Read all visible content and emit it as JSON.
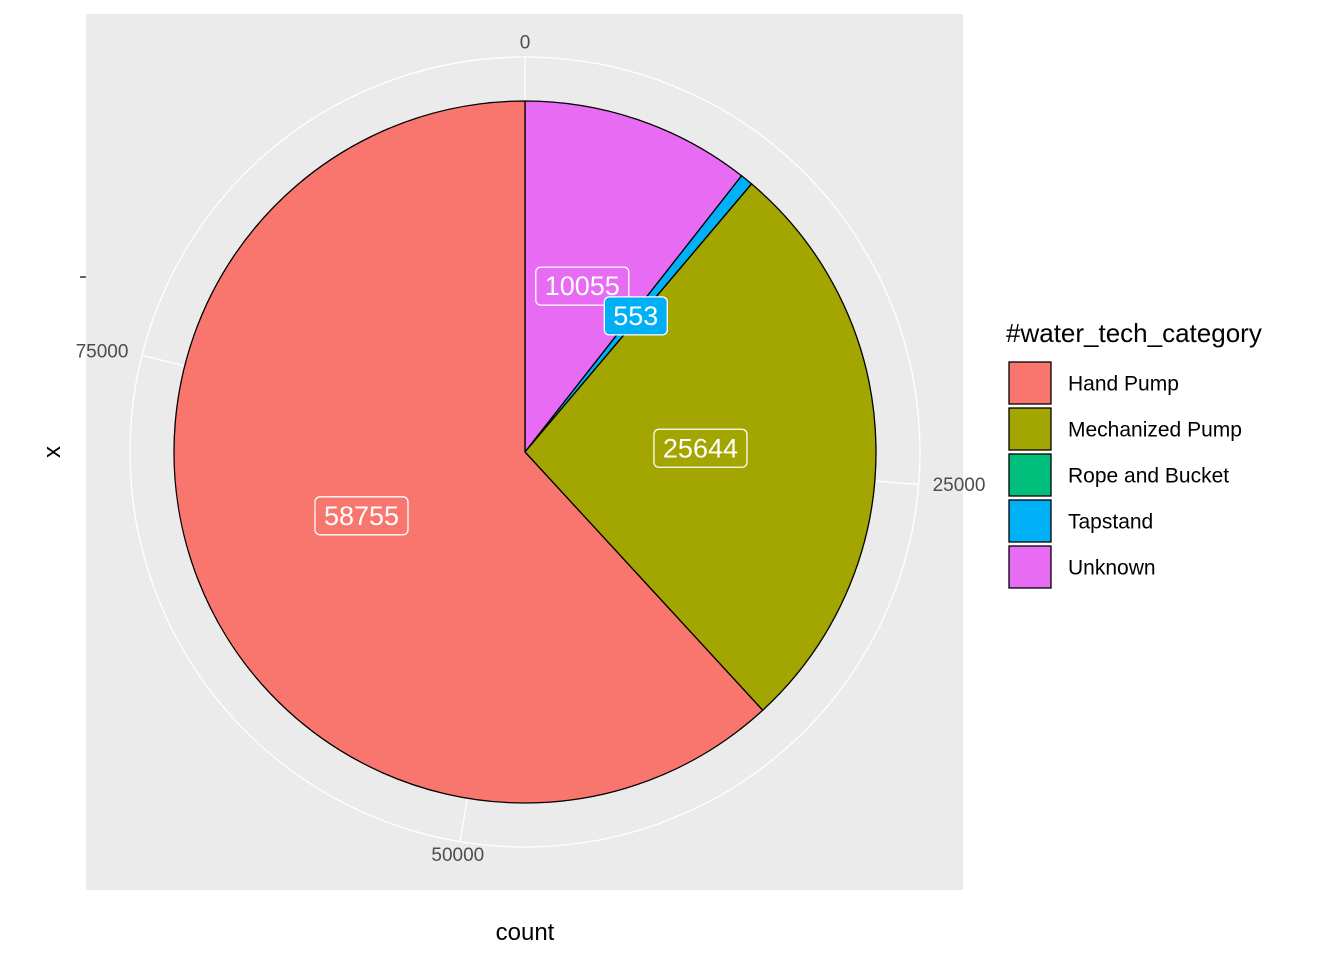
{
  "chart_data": {
    "type": "pie",
    "title": "",
    "xlabel": "count",
    "ylabel": "x",
    "radial_ticks": [
      0,
      25000,
      50000,
      75000
    ],
    "radial_max": 95009,
    "legend": {
      "title": "#water_tech_category",
      "position": "right"
    },
    "slices": [
      {
        "name": "Unknown",
        "value": 10055,
        "label": "10055",
        "color": "#E76BF3"
      },
      {
        "name": "Tapstand",
        "value": 553,
        "label": "553",
        "color": "#00B0F6"
      },
      {
        "name": "Rope and Bucket",
        "value": 2,
        "label": "",
        "color": "#00BF7D"
      },
      {
        "name": "Mechanized Pump",
        "value": 25644,
        "label": "25644",
        "color": "#A3A500"
      },
      {
        "name": "Hand Pump",
        "value": 58755,
        "label": "58755",
        "color": "#F8766D"
      }
    ],
    "legend_order": [
      "Hand Pump",
      "Mechanized Pump",
      "Rope and Bucket",
      "Tapstand",
      "Unknown"
    ],
    "panel_background": "#EBEBEB",
    "grid_color": "#FFFFFF",
    "grid": true
  }
}
